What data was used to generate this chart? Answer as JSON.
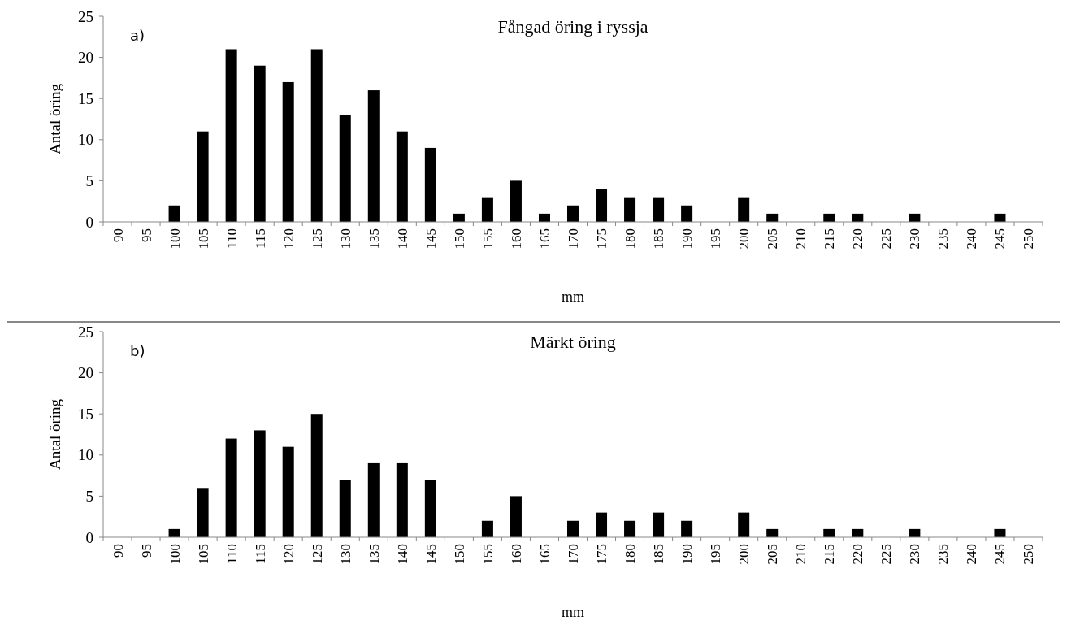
{
  "chart_data": [
    {
      "type": "bar",
      "title": "Fångad öring i ryssja",
      "xlabel": "mm",
      "ylabel": "Antal öring",
      "annotations": [
        "a)"
      ],
      "categories": [
        "90",
        "95",
        "100",
        "105",
        "110",
        "115",
        "120",
        "125",
        "130",
        "135",
        "140",
        "145",
        "150",
        "155",
        "160",
        "165",
        "170",
        "175",
        "180",
        "185",
        "190",
        "195",
        "200",
        "205",
        "210",
        "215",
        "220",
        "225",
        "230",
        "235",
        "240",
        "245",
        "250"
      ],
      "values": [
        0,
        0,
        2,
        11,
        21,
        19,
        17,
        21,
        13,
        16,
        11,
        9,
        1,
        3,
        5,
        1,
        2,
        4,
        3,
        3,
        2,
        0,
        3,
        1,
        0,
        1,
        1,
        0,
        1,
        0,
        0,
        1,
        0
      ],
      "color": "#000000",
      "ylim": [
        0,
        25
      ],
      "yticks": [
        0,
        5,
        10,
        15,
        20,
        25
      ],
      "grid": false
    },
    {
      "type": "bar",
      "title": "Märkt öring",
      "xlabel": "mm",
      "ylabel": "Antal öring",
      "annotations": [
        "b)"
      ],
      "categories": [
        "90",
        "95",
        "100",
        "105",
        "110",
        "115",
        "120",
        "125",
        "130",
        "135",
        "140",
        "145",
        "150",
        "155",
        "160",
        "165",
        "170",
        "175",
        "180",
        "185",
        "190",
        "195",
        "200",
        "205",
        "210",
        "215",
        "220",
        "225",
        "230",
        "235",
        "240",
        "245",
        "250"
      ],
      "values": [
        0,
        0,
        1,
        6,
        12,
        13,
        11,
        15,
        7,
        9,
        9,
        7,
        0,
        2,
        5,
        0,
        2,
        3,
        2,
        3,
        2,
        0,
        3,
        1,
        0,
        1,
        1,
        0,
        1,
        0,
        0,
        1,
        0
      ],
      "color": "#000000",
      "ylim": [
        0,
        25
      ],
      "yticks": [
        0,
        5,
        10,
        15,
        20,
        25
      ],
      "grid": false
    }
  ]
}
